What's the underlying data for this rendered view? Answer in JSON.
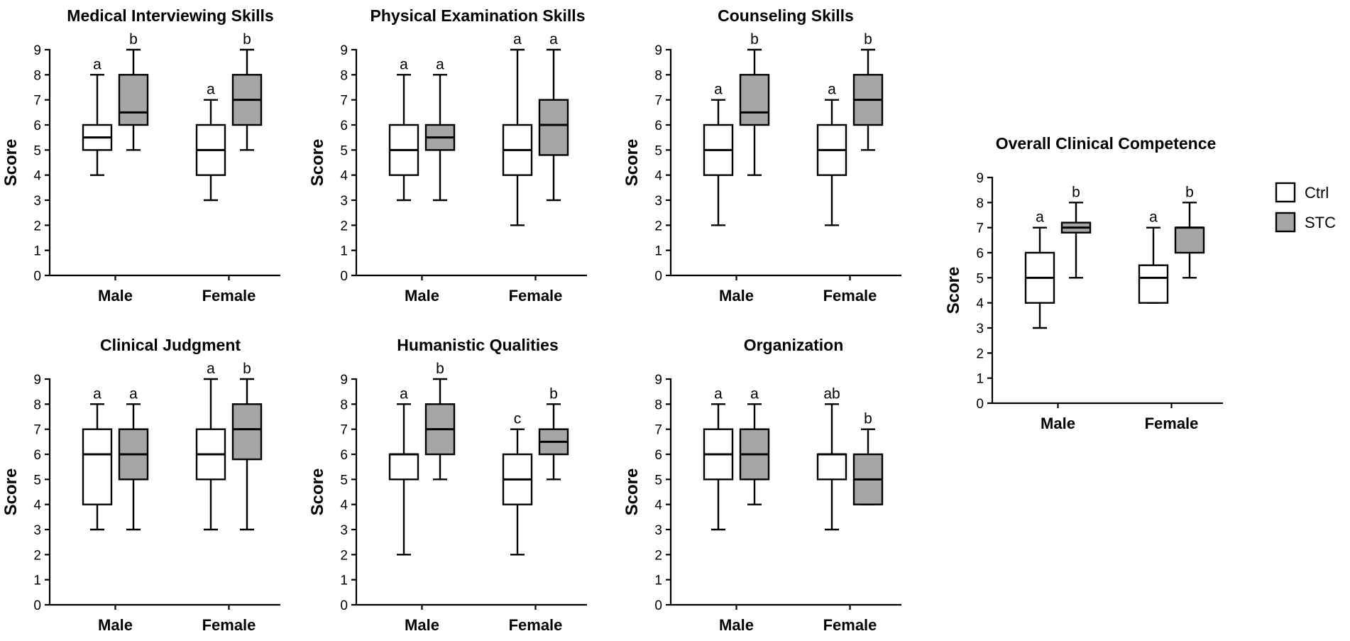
{
  "legend": {
    "items": [
      {
        "label": "Ctrl",
        "color": "#ffffff"
      },
      {
        "label": "STC",
        "color": "#a6a6a6"
      }
    ]
  },
  "chart_data": [
    {
      "type": "boxplot",
      "title": "Medical Interviewing Skills",
      "ylabel": "Score",
      "ylim": [
        0,
        9
      ],
      "yticks": [
        0,
        1,
        2,
        3,
        4,
        5,
        6,
        7,
        8,
        9
      ],
      "categories": [
        "Male",
        "Female"
      ],
      "series": [
        {
          "name": "Ctrl",
          "boxes": [
            {
              "min": 4,
              "q1": 5,
              "median": 5.5,
              "q3": 6,
              "max": 8,
              "letter": "a"
            },
            {
              "min": 3,
              "q1": 4,
              "median": 5,
              "q3": 6,
              "max": 7,
              "letter": "a"
            }
          ]
        },
        {
          "name": "STC",
          "boxes": [
            {
              "min": 5,
              "q1": 6,
              "median": 6.5,
              "q3": 8,
              "max": 9,
              "letter": "b"
            },
            {
              "min": 5,
              "q1": 6,
              "median": 7,
              "q3": 8,
              "max": 9,
              "letter": "b"
            }
          ]
        }
      ]
    },
    {
      "type": "boxplot",
      "title": "Physical Examination Skills",
      "ylabel": "Score",
      "ylim": [
        0,
        9
      ],
      "yticks": [
        0,
        1,
        2,
        3,
        4,
        5,
        6,
        7,
        8,
        9
      ],
      "categories": [
        "Male",
        "Female"
      ],
      "series": [
        {
          "name": "Ctrl",
          "boxes": [
            {
              "min": 3,
              "q1": 4,
              "median": 5,
              "q3": 6,
              "max": 8,
              "letter": "a"
            },
            {
              "min": 2,
              "q1": 4,
              "median": 5,
              "q3": 6,
              "max": 9,
              "letter": "a"
            }
          ]
        },
        {
          "name": "STC",
          "boxes": [
            {
              "min": 3,
              "q1": 5,
              "median": 5.5,
              "q3": 6,
              "max": 8,
              "letter": "a"
            },
            {
              "min": 3,
              "q1": 4.8,
              "median": 6,
              "q3": 7,
              "max": 9,
              "letter": "a"
            }
          ]
        }
      ]
    },
    {
      "type": "boxplot",
      "title": "Counseling Skills",
      "ylabel": "Score",
      "ylim": [
        0,
        9
      ],
      "yticks": [
        0,
        1,
        2,
        3,
        4,
        5,
        6,
        7,
        8,
        9
      ],
      "categories": [
        "Male",
        "Female"
      ],
      "series": [
        {
          "name": "Ctrl",
          "boxes": [
            {
              "min": 2,
              "q1": 4,
              "median": 5,
              "q3": 6,
              "max": 7,
              "letter": "a"
            },
            {
              "min": 2,
              "q1": 4,
              "median": 5,
              "q3": 6,
              "max": 7,
              "letter": "a"
            }
          ]
        },
        {
          "name": "STC",
          "boxes": [
            {
              "min": 4,
              "q1": 6,
              "median": 6.5,
              "q3": 8,
              "max": 9,
              "letter": "b"
            },
            {
              "min": 5,
              "q1": 6,
              "median": 7,
              "q3": 8,
              "max": 9,
              "letter": "b"
            }
          ]
        }
      ]
    },
    {
      "type": "boxplot",
      "title": "Overall Clinical Competence",
      "ylabel": "Score",
      "ylim": [
        0,
        9
      ],
      "yticks": [
        0,
        1,
        2,
        3,
        4,
        5,
        6,
        7,
        8,
        9
      ],
      "categories": [
        "Male",
        "Female"
      ],
      "series": [
        {
          "name": "Ctrl",
          "boxes": [
            {
              "min": 3,
              "q1": 4,
              "median": 5,
              "q3": 6,
              "max": 7,
              "letter": "a"
            },
            {
              "min": 4,
              "q1": 4,
              "median": 5,
              "q3": 5.5,
              "max": 7,
              "letter": "a"
            }
          ]
        },
        {
          "name": "STC",
          "boxes": [
            {
              "min": 5,
              "q1": 6.8,
              "median": 7,
              "q3": 7.2,
              "max": 8,
              "letter": "b"
            },
            {
              "min": 5,
              "q1": 6,
              "median": 7,
              "q3": 7,
              "max": 8,
              "letter": "b"
            }
          ]
        }
      ]
    },
    {
      "type": "boxplot",
      "title": "Clinical Judgment",
      "ylabel": "Score",
      "ylim": [
        0,
        9
      ],
      "yticks": [
        0,
        1,
        2,
        3,
        4,
        5,
        6,
        7,
        8,
        9
      ],
      "categories": [
        "Male",
        "Female"
      ],
      "series": [
        {
          "name": "Ctrl",
          "boxes": [
            {
              "min": 3,
              "q1": 4,
              "median": 6,
              "q3": 7,
              "max": 8,
              "letter": "a"
            },
            {
              "min": 3,
              "q1": 5,
              "median": 6,
              "q3": 7,
              "max": 9,
              "letter": "a"
            }
          ]
        },
        {
          "name": "STC",
          "boxes": [
            {
              "min": 3,
              "q1": 5,
              "median": 6,
              "q3": 7,
              "max": 8,
              "letter": "a"
            },
            {
              "min": 3,
              "q1": 5.8,
              "median": 7,
              "q3": 8,
              "max": 9,
              "letter": "b"
            }
          ]
        }
      ]
    },
    {
      "type": "boxplot",
      "title": "Humanistic Qualities",
      "ylabel": "Score",
      "ylim": [
        0,
        9
      ],
      "yticks": [
        0,
        1,
        2,
        3,
        4,
        5,
        6,
        7,
        8,
        9
      ],
      "categories": [
        "Male",
        "Female"
      ],
      "series": [
        {
          "name": "Ctrl",
          "boxes": [
            {
              "min": 2,
              "q1": 5,
              "median": 6,
              "q3": 6,
              "max": 8,
              "letter": "a"
            },
            {
              "min": 2,
              "q1": 4,
              "median": 5,
              "q3": 6,
              "max": 7,
              "letter": "c"
            }
          ]
        },
        {
          "name": "STC",
          "boxes": [
            {
              "min": 5,
              "q1": 6,
              "median": 7,
              "q3": 8,
              "max": 9,
              "letter": "b"
            },
            {
              "min": 5,
              "q1": 6,
              "median": 6.5,
              "q3": 7,
              "max": 8,
              "letter": "b"
            }
          ]
        }
      ]
    },
    {
      "type": "boxplot",
      "title": "Organization",
      "ylabel": "Score",
      "ylim": [
        0,
        9
      ],
      "yticks": [
        0,
        1,
        2,
        3,
        4,
        5,
        6,
        7,
        8,
        9
      ],
      "categories": [
        "Male",
        "Female"
      ],
      "series": [
        {
          "name": "Ctrl",
          "boxes": [
            {
              "min": 3,
              "q1": 5,
              "median": 6,
              "q3": 7,
              "max": 8,
              "letter": "a"
            },
            {
              "min": 3,
              "q1": 5,
              "median": 6,
              "q3": 6,
              "max": 8,
              "letter": "ab"
            }
          ]
        },
        {
          "name": "STC",
          "boxes": [
            {
              "min": 4,
              "q1": 5,
              "median": 6,
              "q3": 7,
              "max": 8,
              "letter": "a"
            },
            {
              "min": 4,
              "q1": 4,
              "median": 5,
              "q3": 6,
              "max": 7,
              "letter": "b"
            }
          ]
        }
      ]
    }
  ]
}
